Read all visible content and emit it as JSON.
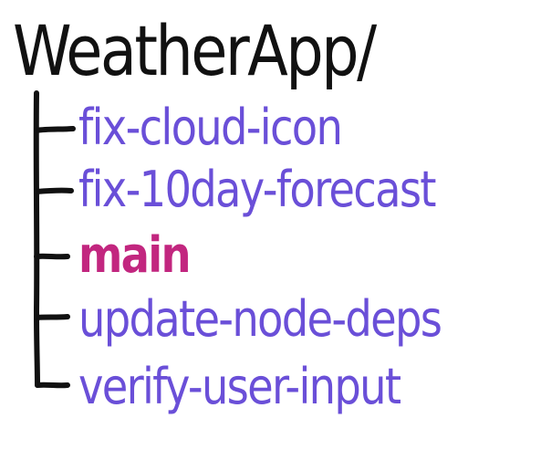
{
  "root": {
    "label": "WeatherApp/",
    "color": "#111111"
  },
  "branches": [
    {
      "label": "fix-cloud-icon",
      "color": "#6a4fd8",
      "current": false
    },
    {
      "label": "fix-10day-forecast",
      "color": "#6a4fd8",
      "current": false
    },
    {
      "label": "main",
      "color": "#c2267f",
      "current": true
    },
    {
      "label": "update-node-deps",
      "color": "#6a4fd8",
      "current": false
    },
    {
      "label": "verify-user-input",
      "color": "#6a4fd8",
      "current": false
    }
  ]
}
